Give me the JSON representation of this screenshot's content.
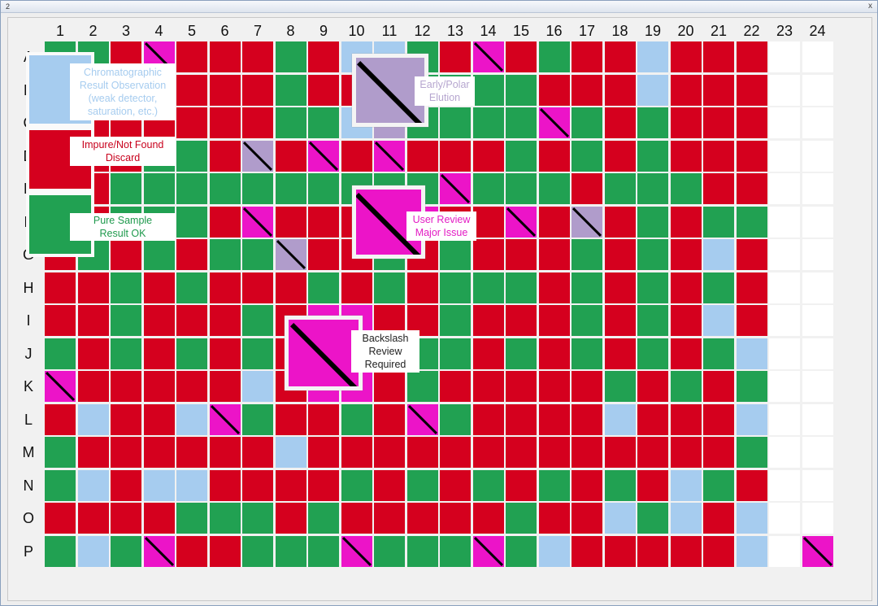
{
  "window": {
    "number": "2",
    "close_glyph": "x"
  },
  "colors": {
    "R": "#d5001e",
    "G": "#21a152",
    "B": "#a6ccef",
    "M": "#ec14c8",
    "L": "#b09ccb",
    "W": "#ffffff"
  },
  "columns": [
    "1",
    "2",
    "3",
    "4",
    "5",
    "6",
    "7",
    "8",
    "9",
    "10",
    "11",
    "12",
    "13",
    "14",
    "15",
    "16",
    "17",
    "18",
    "19",
    "20",
    "21",
    "22",
    "23",
    "24"
  ],
  "rows": [
    "A",
    "B",
    "C",
    "D",
    "E",
    "F",
    "G",
    "H",
    "I",
    "J",
    "K",
    "L",
    "M",
    "N",
    "O",
    "P"
  ],
  "plate": [
    "GGRMRRRGRBBGRMRGRRBRRRWW",
    "GRRRRRRGRRLGGGGRRRBRRRWW",
    "GRRRRRRGGBLGGGGMGRGRRRWW",
    "GRRGGRLRMRMRRRGRGRGRRRWW",
    "GRGGGGGGGGGGMGGGRGGGRRWW",
    "GRGGGRMRRRMMRRMRLRGRGGWW",
    "RGRGRGGLRRGRGRRRGRGRBRWW",
    "RRGRGRRRGRGRGGGRGRGRGRWW",
    "RRGRRRGRMMRRGRRRGRGRBRWW",
    "GRGRGRGRMMRGGRGRGRGRGBWW",
    "MRRRRRBRMMRGRRRRRGRGRGWW",
    "RBRRBMGRRGRMGRRRRBRRRBWW",
    "GRRRRRRBRRRRRRRRRRRRRGWW",
    "GBRBBRRRRGRGRGRGRGRBGRWW",
    "RRRRGGGRGRRRRRGRRBGBRBWW",
    "GBGMRRGGGMGGGMGBRRRRRBWM"
  ],
  "diagonal_marks": [
    "A4",
    "A14",
    "C16",
    "D7",
    "D9",
    "D11",
    "E13",
    "F7",
    "F15",
    "F17",
    "G8",
    "K1",
    "L6",
    "L12",
    "P4",
    "P10",
    "P14",
    "P24"
  ],
  "legend": [
    {
      "key": "B",
      "label": "Chromatographic Result Observation (weak detector, saturation, etc.)",
      "text_color": "#a6ccef"
    },
    {
      "key": "R",
      "label": "Impure/Not Found Discard",
      "text_color": "#c8001c"
    },
    {
      "key": "G",
      "label": "Pure Sample Result OK",
      "text_color": "#1f9a4d"
    }
  ],
  "callouts": [
    {
      "key": "L",
      "label": "Early/Polar Elution",
      "text_color": "#b6a6cf"
    },
    {
      "key": "M",
      "label": "User Review Major Issue",
      "text_color": "#e31bc4"
    },
    {
      "key": "M",
      "label": "Backslash Review Required",
      "text_color": "#222222"
    }
  ]
}
